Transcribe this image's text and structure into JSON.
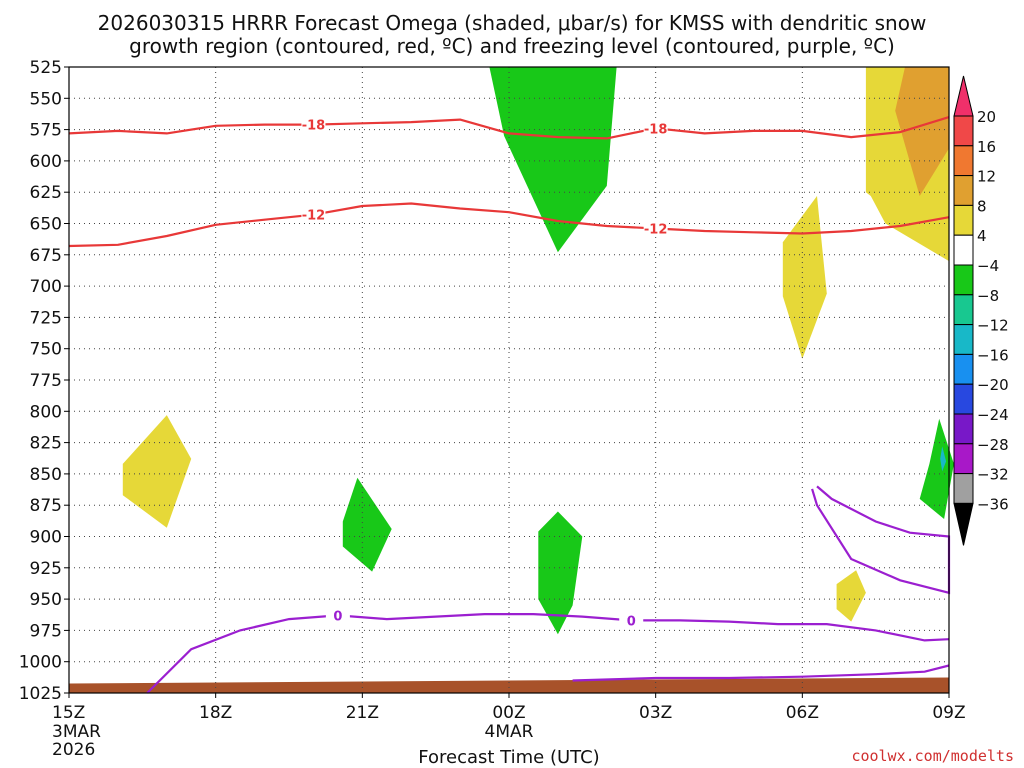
{
  "chart_data": {
    "type": "time-height cross-section",
    "title_line1": "2026030315 HRRR Forecast Omega (shaded, μbar/s) for KMSS with dendritic snow",
    "title_line2": "growth region (contoured, red, ºC) and freezing level (contoured, purple, ºC)",
    "xlabel": "Forecast Time (UTC)",
    "credit": "coolwx.com/modelts",
    "x_ticks": [
      {
        "hours": 0,
        "label": "15Z",
        "sub": [
          "3MAR",
          "2026"
        ]
      },
      {
        "hours": 3,
        "label": "18Z",
        "sub": []
      },
      {
        "hours": 6,
        "label": "21Z",
        "sub": []
      },
      {
        "hours": 9,
        "label": "00Z",
        "sub": [
          "4MAR"
        ]
      },
      {
        "hours": 12,
        "label": "03Z",
        "sub": []
      },
      {
        "hours": 15,
        "label": "06Z",
        "sub": []
      },
      {
        "hours": 18,
        "label": "09Z",
        "sub": []
      }
    ],
    "x_range_hours": [
      0,
      18
    ],
    "y_levels_hpa": [
      525,
      550,
      575,
      600,
      625,
      650,
      675,
      700,
      725,
      750,
      775,
      800,
      825,
      850,
      875,
      900,
      925,
      950,
      975,
      1000,
      1025
    ],
    "y_range_hpa": [
      525,
      1025
    ],
    "colorbar": {
      "labels": [
        "20",
        "16",
        "12",
        "8",
        "4",
        "−4",
        "−8",
        "−12",
        "−16",
        "−20",
        "−24",
        "−28",
        "−32",
        "−36"
      ],
      "colors": [
        "#f0306a",
        "#f04848",
        "#f07830",
        "#e0a030",
        "#e6d838",
        "#ffffff",
        "#18c818",
        "#18c890",
        "#18b8c8",
        "#1890f0",
        "#2848e0",
        "#7818c8",
        "#a818c8",
        "#a0a0a0",
        "#000000"
      ]
    },
    "omega_regions": [
      {
        "sign": "positive",
        "range": "4 to 8",
        "color": "#e6d838",
        "points": [
          [
            1.1,
            842
          ],
          [
            2.0,
            803
          ],
          [
            2.5,
            838
          ],
          [
            2.0,
            893
          ],
          [
            1.1,
            867
          ]
        ]
      },
      {
        "sign": "negative",
        "range": "-4 to -8",
        "color": "#18c818",
        "points": [
          [
            5.6,
            888
          ],
          [
            5.9,
            853
          ],
          [
            6.6,
            894
          ],
          [
            6.2,
            928
          ],
          [
            5.6,
            908
          ]
        ]
      },
      {
        "sign": "negative",
        "range": "-4 to -8",
        "color": "#18c818",
        "points": [
          [
            9.6,
            896
          ],
          [
            10.0,
            880
          ],
          [
            10.5,
            900
          ],
          [
            10.3,
            955
          ],
          [
            10.0,
            978
          ],
          [
            9.6,
            950
          ]
        ]
      },
      {
        "sign": "negative",
        "range": "-4 to -8",
        "color": "#18c818",
        "points": [
          [
            8.6,
            525
          ],
          [
            11.2,
            525
          ],
          [
            11.0,
            620
          ],
          [
            10.0,
            673
          ],
          [
            8.9,
            580
          ]
        ]
      },
      {
        "sign": "positive",
        "range": "4 to 8",
        "color": "#e6d838",
        "points": [
          [
            14.6,
            665
          ],
          [
            15.3,
            628
          ],
          [
            15.5,
            706
          ],
          [
            15.0,
            758
          ],
          [
            14.6,
            708
          ]
        ]
      },
      {
        "sign": "positive",
        "range": "4 to 8",
        "color": "#e6d838",
        "points": [
          [
            15.7,
            938
          ],
          [
            16.1,
            927
          ],
          [
            16.3,
            945
          ],
          [
            16.0,
            968
          ],
          [
            15.7,
            958
          ]
        ]
      },
      {
        "sign": "positive",
        "range": "4 to 8",
        "color": "#e6d838",
        "points": [
          [
            16.3,
            525
          ],
          [
            18.0,
            525
          ],
          [
            18.0,
            680
          ],
          [
            16.7,
            650
          ],
          [
            16.4,
            628
          ],
          [
            16.3,
            625
          ]
        ]
      },
      {
        "sign": "positive",
        "range": "8 to 12",
        "color": "#e0a030",
        "points": [
          [
            17.1,
            525
          ],
          [
            18.0,
            525
          ],
          [
            18.0,
            590
          ],
          [
            17.4,
            628
          ],
          [
            16.9,
            560
          ]
        ]
      },
      {
        "sign": "negative",
        "range": "-4 to -8",
        "color": "#18c818",
        "points": [
          [
            17.8,
            806
          ],
          [
            18.1,
            842
          ],
          [
            17.9,
            886
          ],
          [
            17.4,
            870
          ],
          [
            17.6,
            842
          ]
        ]
      },
      {
        "sign": "negative",
        "range": "-12 to -16",
        "color": "#18b8c8",
        "points": [
          [
            17.86,
            828
          ],
          [
            17.94,
            840
          ],
          [
            17.86,
            848
          ],
          [
            17.82,
            838
          ]
        ]
      }
    ],
    "dgz_contours": [
      {
        "level": -18,
        "label": "-18",
        "color": "#e83838",
        "points": [
          [
            0,
            578
          ],
          [
            1,
            576
          ],
          [
            2,
            578
          ],
          [
            3,
            572
          ],
          [
            4,
            571
          ],
          [
            5,
            571
          ],
          [
            6,
            570
          ],
          [
            7,
            569
          ],
          [
            8,
            567
          ],
          [
            9,
            578
          ],
          [
            10,
            581
          ],
          [
            11,
            582
          ],
          [
            12,
            574
          ],
          [
            13,
            578
          ],
          [
            14,
            576
          ],
          [
            15,
            576
          ],
          [
            16,
            581
          ],
          [
            17,
            577
          ],
          [
            18,
            565
          ]
        ]
      },
      {
        "level": -12,
        "label": "-12",
        "color": "#e83838",
        "points": [
          [
            0,
            668
          ],
          [
            1,
            667
          ],
          [
            2,
            660
          ],
          [
            3,
            651
          ],
          [
            4,
            647
          ],
          [
            5,
            643
          ],
          [
            6,
            636
          ],
          [
            7,
            634
          ],
          [
            8,
            638
          ],
          [
            9,
            641
          ],
          [
            10,
            648
          ],
          [
            11,
            652
          ],
          [
            12,
            654
          ],
          [
            13,
            656
          ],
          [
            14,
            657
          ],
          [
            15,
            658
          ],
          [
            16,
            656
          ],
          [
            17,
            652
          ],
          [
            18,
            645
          ]
        ]
      }
    ],
    "freezing_level": {
      "level": 0,
      "label": "0",
      "color": "#9b1fd0",
      "main": [
        [
          1.6,
          1025
        ],
        [
          2.5,
          990
        ],
        [
          3.5,
          975
        ],
        [
          4.5,
          966
        ],
        [
          5.5,
          963
        ],
        [
          6.5,
          966
        ],
        [
          7.5,
          964
        ],
        [
          8.5,
          962
        ],
        [
          9.5,
          962
        ],
        [
          10.5,
          964
        ],
        [
          11.5,
          967
        ],
        [
          12.5,
          967
        ],
        [
          13.5,
          968
        ],
        [
          14.5,
          970
        ],
        [
          15.5,
          970
        ],
        [
          16.5,
          975
        ],
        [
          17.5,
          983
        ],
        [
          18,
          982
        ]
      ],
      "lower": [
        [
          10.3,
          1015
        ],
        [
          12,
          1013
        ],
        [
          13.5,
          1013
        ],
        [
          15,
          1012
        ],
        [
          16.5,
          1010
        ],
        [
          17.5,
          1008
        ],
        [
          18,
          1003
        ]
      ],
      "upper_closed": [
        [
          15.3,
          860
        ],
        [
          15.6,
          870
        ],
        [
          16.5,
          888
        ],
        [
          17.2,
          897
        ],
        [
          18,
          900
        ],
        [
          18,
          945
        ],
        [
          17,
          935
        ],
        [
          16,
          918
        ],
        [
          15.3,
          875
        ],
        [
          15.2,
          862
        ]
      ]
    },
    "terrain": {
      "color": "#a8522a",
      "top_hpa": 1015
    }
  }
}
